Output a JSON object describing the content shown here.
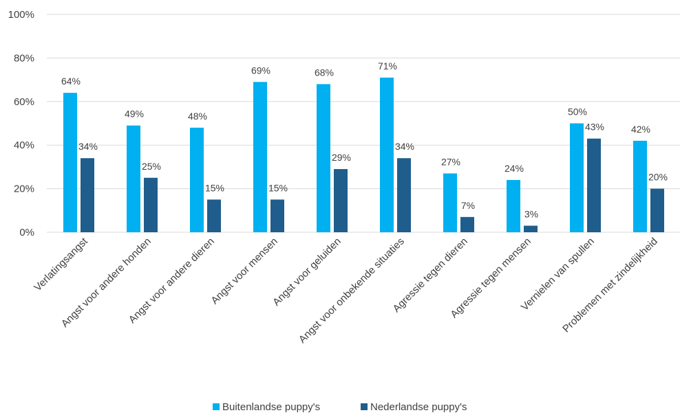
{
  "chart_data": {
    "type": "bar",
    "categories": [
      "Verlatingsangst",
      "Angst voor andere honden",
      "Angst voor andere dieren",
      "Angst voor mensen",
      "Angst voor geluiden",
      "Angst voor onbekende situaties",
      "Agressie tegen dieren",
      "Agressie tegen mensen",
      "Vernielen van spullen",
      "Problemen met zindelijkheid"
    ],
    "series": [
      {
        "name": "Buitenlandse puppy's",
        "color": "#00b0f0",
        "values": [
          64,
          49,
          48,
          69,
          68,
          71,
          27,
          24,
          50,
          42
        ],
        "labels": [
          "64%",
          "49%",
          "48%",
          "69%",
          "68%",
          "71%",
          "27%",
          "24%",
          "50%",
          "42%"
        ]
      },
      {
        "name": "Nederlandse puppy's",
        "color": "#1f5d8c",
        "values": [
          34,
          25,
          15,
          15,
          29,
          34,
          7,
          3,
          43,
          20
        ],
        "labels": [
          "34%",
          "25%",
          "15%",
          "15%",
          "29%",
          "34%",
          "7%",
          "3%",
          "43%",
          "20%"
        ]
      }
    ],
    "yticks": [
      0,
      20,
      40,
      60,
      80,
      100
    ],
    "ytick_labels": [
      "0%",
      "20%",
      "40%",
      "60%",
      "80%",
      "100%"
    ],
    "ylim": [
      0,
      100
    ],
    "grid": true,
    "legend_position": "bottom"
  }
}
